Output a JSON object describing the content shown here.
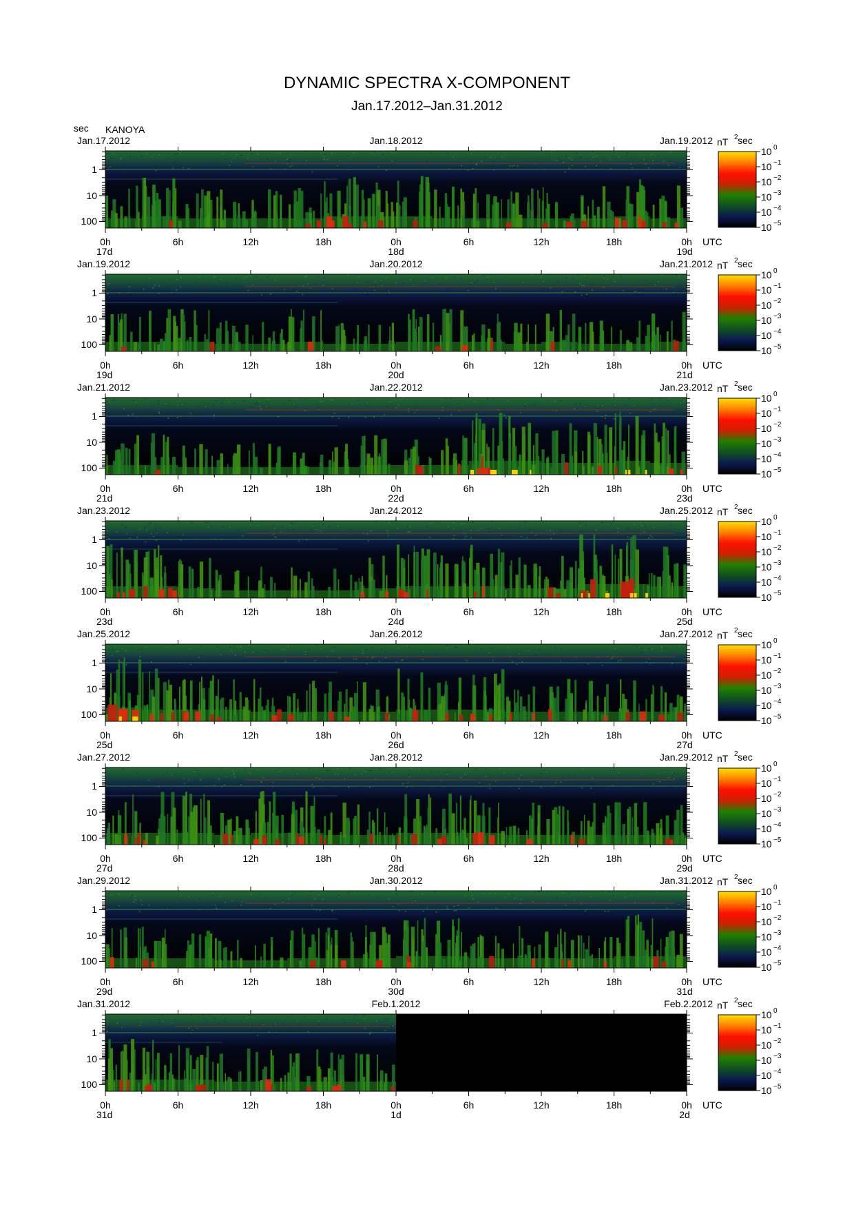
{
  "chart_data": {
    "type": "heatmap",
    "title": "DYNAMIC SPECTRA X-COMPONENT",
    "subtitle": "Jan.17.2012–Jan.31.2012",
    "station": "KANOYA",
    "ylabel": "sec",
    "y_scale": "log",
    "y_ticks": [
      "1",
      "10",
      "100"
    ],
    "x_ticks": [
      "0h",
      "6h",
      "12h",
      "18h",
      "0h",
      "6h",
      "12h",
      "18h",
      "0h"
    ],
    "time_unit": "UTC",
    "colorbar": {
      "unit": "nT",
      "unit_exp": "2",
      "unit_suffix": "sec",
      "base": "10",
      "exponents": [
        "0",
        "−1",
        "−2",
        "−3",
        "−4",
        "−5"
      ],
      "colors": [
        "#ffe000",
        "#ff8000",
        "#ff1000",
        "#cc2000",
        "#208000",
        "#105020",
        "#0a1a50",
        "#000000"
      ]
    },
    "panels": [
      {
        "date_left": "Jan.17.2012",
        "date_mid": "Jan.18.2012",
        "date_right": "Jan.19.2012",
        "day_left": "17d",
        "day_mid": "18d",
        "day_right": "19d",
        "data_fraction": 1.0,
        "activity": [
          2,
          3,
          2,
          2,
          2,
          2,
          3,
          3,
          3,
          2,
          2,
          2,
          2,
          2,
          3,
          2
        ]
      },
      {
        "date_left": "Jan.19.2012",
        "date_mid": "Jan.20.2012",
        "date_right": "Jan.21.2012",
        "day_left": "19d",
        "day_mid": "20d",
        "day_right": "21d",
        "data_fraction": 1.0,
        "activity": [
          2,
          2,
          2,
          1,
          1,
          2,
          1,
          1,
          2,
          2,
          2,
          1,
          2,
          1,
          1,
          2
        ]
      },
      {
        "date_left": "Jan.21.2012",
        "date_mid": "Jan.22.2012",
        "date_right": "Jan.23.2012",
        "day_left": "21d",
        "day_mid": "22d",
        "day_right": "23d",
        "data_fraction": 1.0,
        "activity": [
          2,
          2,
          1,
          1,
          1,
          1,
          1,
          2,
          2,
          2,
          4,
          4,
          3,
          3,
          4,
          3
        ]
      },
      {
        "date_left": "Jan.23.2012",
        "date_mid": "Jan.24.2012",
        "date_right": "Jan.25.2012",
        "day_left": "23d",
        "day_mid": "24d",
        "day_right": "25d",
        "data_fraction": 1.0,
        "activity": [
          3,
          3,
          2,
          1,
          1,
          1,
          1,
          2,
          3,
          3,
          3,
          2,
          2,
          4,
          4,
          3
        ]
      },
      {
        "date_left": "Jan.25.2012",
        "date_mid": "Jan.26.2012",
        "date_right": "Jan.27.2012",
        "day_left": "25d",
        "day_mid": "26d",
        "day_right": "27d",
        "data_fraction": 1.0,
        "activity": [
          4,
          3,
          3,
          3,
          2,
          2,
          2,
          2,
          3,
          3,
          3,
          2,
          2,
          2,
          2,
          2
        ]
      },
      {
        "date_left": "Jan.27.2012",
        "date_mid": "Jan.28.2012",
        "date_right": "Jan.29.2012",
        "day_left": "27d",
        "day_mid": "28d",
        "day_right": "29d",
        "data_fraction": 1.0,
        "activity": [
          3,
          3,
          3,
          2,
          3,
          3,
          2,
          2,
          3,
          3,
          3,
          2,
          2,
          2,
          2,
          2
        ]
      },
      {
        "date_left": "Jan.29.2012",
        "date_mid": "Jan.30.2012",
        "date_right": "Jan.31.2012",
        "day_left": "29d",
        "day_mid": "30d",
        "day_right": "31d",
        "data_fraction": 1.0,
        "activity": [
          2,
          2,
          2,
          1,
          1,
          2,
          2,
          2,
          3,
          3,
          2,
          2,
          2,
          2,
          3,
          3
        ]
      },
      {
        "date_left": "Jan.31.2012",
        "date_mid": "Feb.1.2012",
        "date_right": "Feb.2.2012",
        "day_left": "31d",
        "day_mid": "1d",
        "day_right": "2d",
        "data_fraction": 0.5,
        "activity": [
          3,
          3,
          3,
          2,
          2,
          2,
          2,
          2
        ]
      }
    ]
  }
}
